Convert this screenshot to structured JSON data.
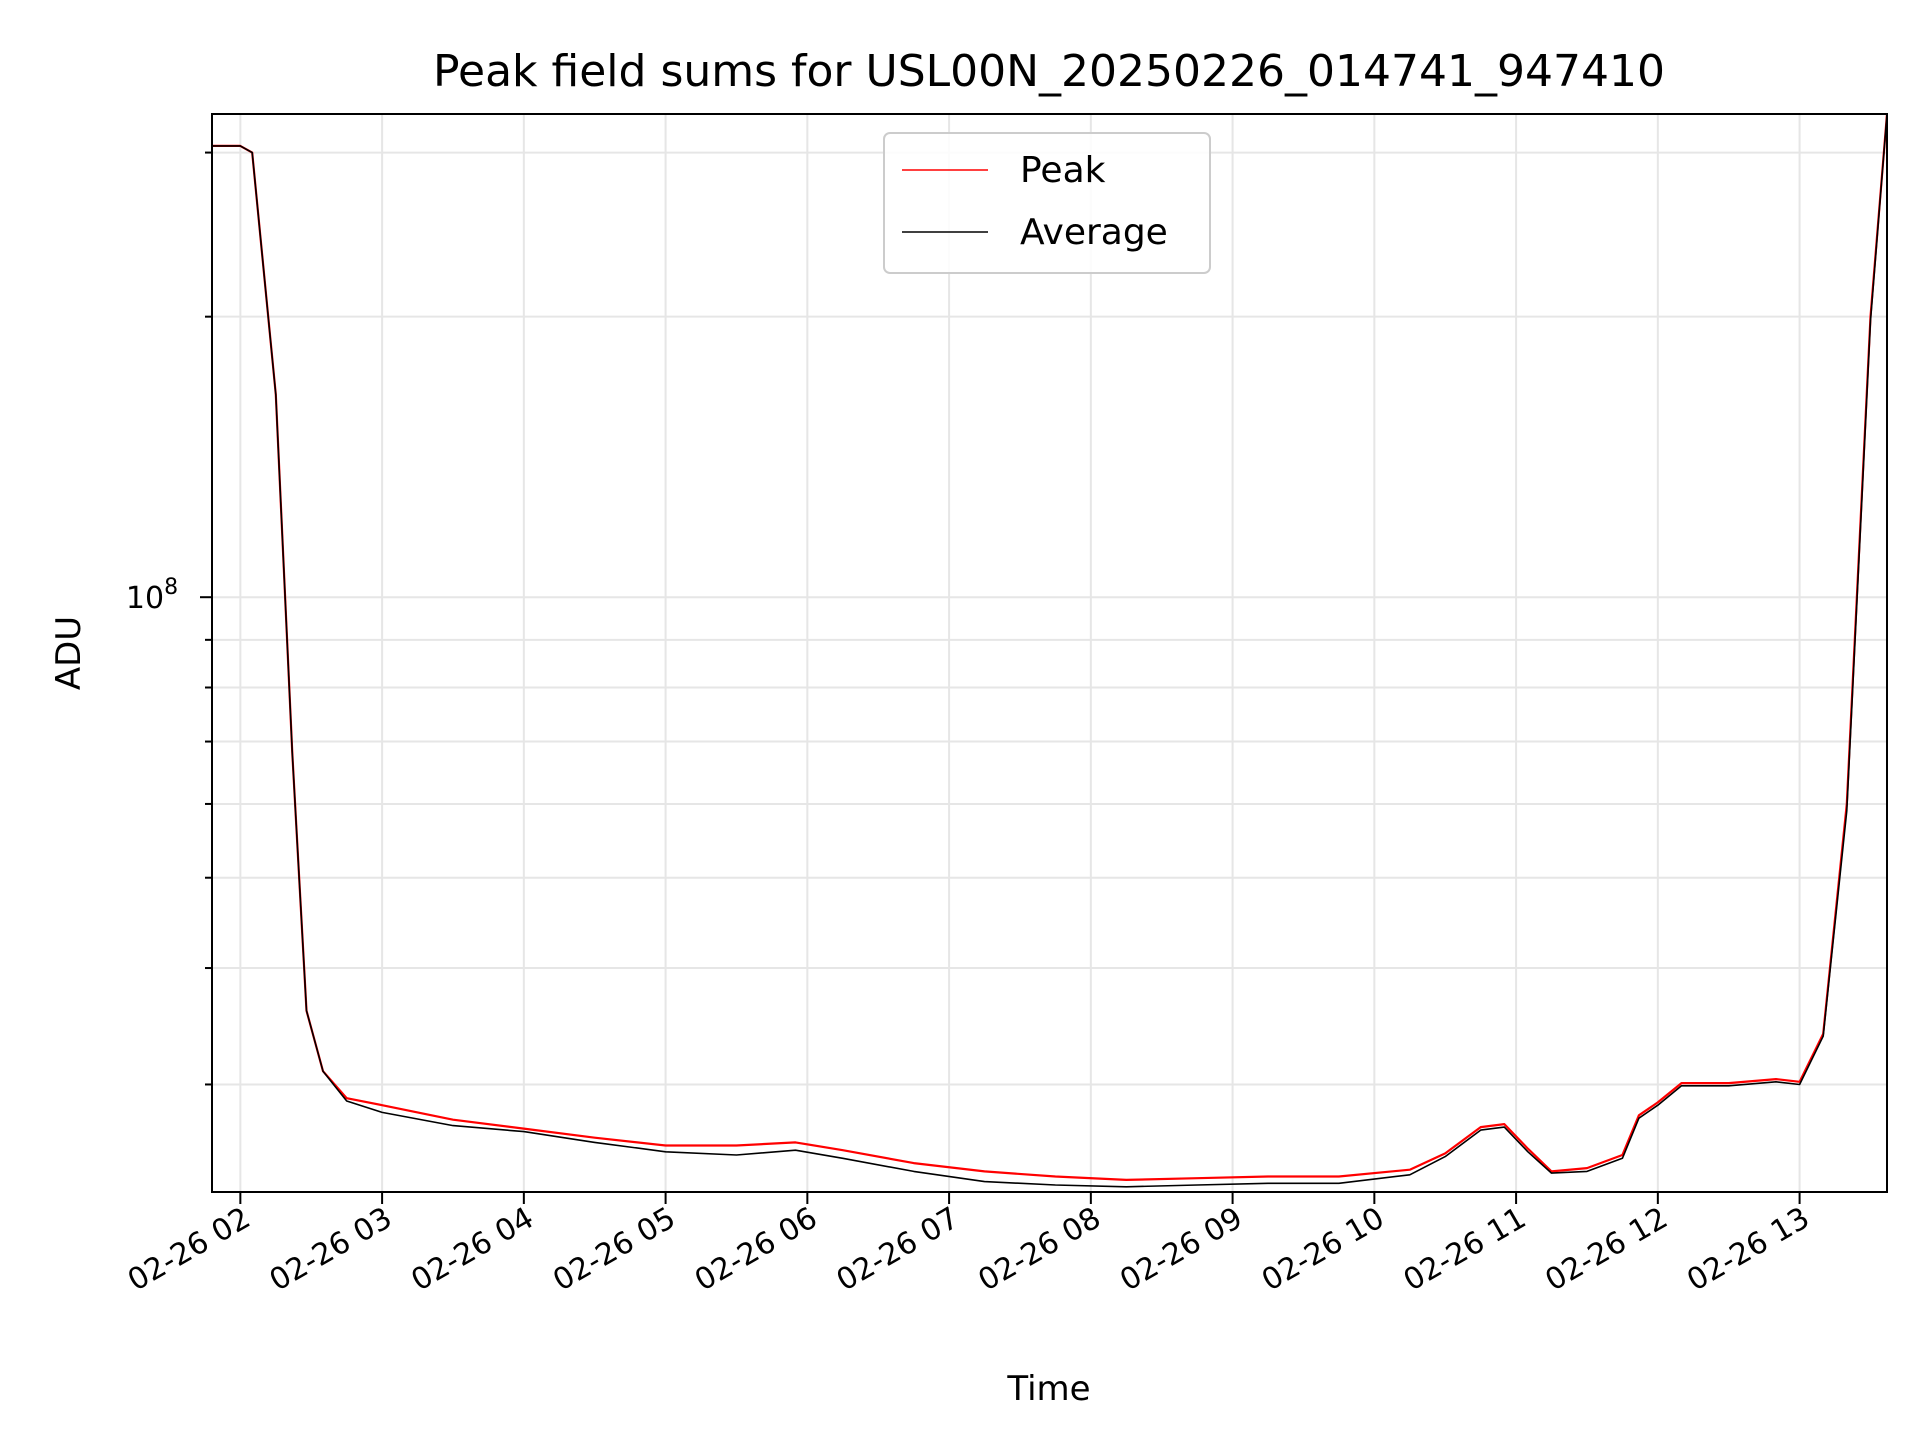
{
  "chart_data": {
    "type": "line",
    "title": "Peak field sums for USL00N_20250226_014741_947410",
    "xlabel": "Time",
    "ylabel": "ADU",
    "yscale": "log",
    "xlim": [
      "02-26 01:48",
      "02-26 13:37"
    ],
    "ylim": [
      23000000,
      330000000
    ],
    "x_ticks": [
      "02-26 02",
      "02-26 03",
      "02-26 04",
      "02-26 05",
      "02-26 06",
      "02-26 07",
      "02-26 08",
      "02-26 09",
      "02-26 10",
      "02-26 11",
      "02-26 12",
      "02-26 13"
    ],
    "y_tick_label": {
      "base": "10",
      "exponent": "8"
    },
    "grid": true,
    "legend_position": "upper-center",
    "series": [
      {
        "name": "Peak",
        "color": "#ff0000",
        "x": [
          "02-26 01:48",
          "02-26 02:00",
          "02-26 02:05",
          "02-26 02:15",
          "02-26 02:22",
          "02-26 02:28",
          "02-26 02:35",
          "02-26 02:45",
          "02-26 03:00",
          "02-26 03:30",
          "02-26 04:00",
          "02-26 04:30",
          "02-26 05:00",
          "02-26 05:30",
          "02-26 05:55",
          "02-26 06:15",
          "02-26 06:45",
          "02-26 07:15",
          "02-26 07:45",
          "02-26 08:15",
          "02-26 08:45",
          "02-26 09:15",
          "02-26 09:45",
          "02-26 10:15",
          "02-26 10:30",
          "02-26 10:45",
          "02-26 10:55",
          "02-26 11:05",
          "02-26 11:15",
          "02-26 11:30",
          "02-26 11:45",
          "02-26 11:52",
          "02-26 12:00",
          "02-26 12:10",
          "02-26 12:30",
          "02-26 12:50",
          "02-26 13:00",
          "02-26 13:10",
          "02-26 13:20",
          "02-26 13:30",
          "02-26 13:37"
        ],
        "values": [
          305000000,
          305000000,
          300000000,
          165000000,
          68000000,
          36000000,
          31000000,
          29000000,
          28500000,
          27500000,
          26900000,
          26300000,
          25800000,
          25800000,
          26000000,
          25500000,
          24700000,
          24200000,
          23900000,
          23700000,
          23800000,
          23900000,
          23900000,
          24300000,
          25300000,
          27000000,
          27200000,
          25600000,
          24200000,
          24400000,
          25200000,
          27800000,
          28700000,
          30100000,
          30100000,
          30400000,
          30200000,
          34000000,
          60000000,
          200000000,
          330000000
        ]
      },
      {
        "name": "Average",
        "color": "#000000",
        "x": [
          "02-26 01:48",
          "02-26 02:00",
          "02-26 02:05",
          "02-26 02:15",
          "02-26 02:22",
          "02-26 02:28",
          "02-26 02:35",
          "02-26 02:45",
          "02-26 03:00",
          "02-26 03:30",
          "02-26 04:00",
          "02-26 04:30",
          "02-26 05:00",
          "02-26 05:30",
          "02-26 05:55",
          "02-26 06:15",
          "02-26 06:45",
          "02-26 07:15",
          "02-26 07:45",
          "02-26 08:15",
          "02-26 08:45",
          "02-26 09:15",
          "02-26 09:45",
          "02-26 10:15",
          "02-26 10:30",
          "02-26 10:45",
          "02-26 10:55",
          "02-26 11:05",
          "02-26 11:15",
          "02-26 11:30",
          "02-26 11:45",
          "02-26 11:52",
          "02-26 12:00",
          "02-26 12:10",
          "02-26 12:30",
          "02-26 12:50",
          "02-26 13:00",
          "02-26 13:10",
          "02-26 13:20",
          "02-26 13:30",
          "02-26 13:37"
        ],
        "values": [
          305000000,
          305000000,
          300000000,
          165000000,
          68000000,
          36000000,
          31000000,
          28800000,
          28000000,
          27100000,
          26700000,
          26000000,
          25400000,
          25200000,
          25500000,
          25000000,
          24200000,
          23600000,
          23400000,
          23300000,
          23400000,
          23500000,
          23500000,
          24000000,
          25100000,
          26800000,
          27000000,
          25400000,
          24100000,
          24200000,
          25000000,
          27600000,
          28500000,
          29900000,
          29900000,
          30200000,
          30000000,
          33800000,
          59000000,
          198000000,
          330000000
        ]
      }
    ]
  }
}
